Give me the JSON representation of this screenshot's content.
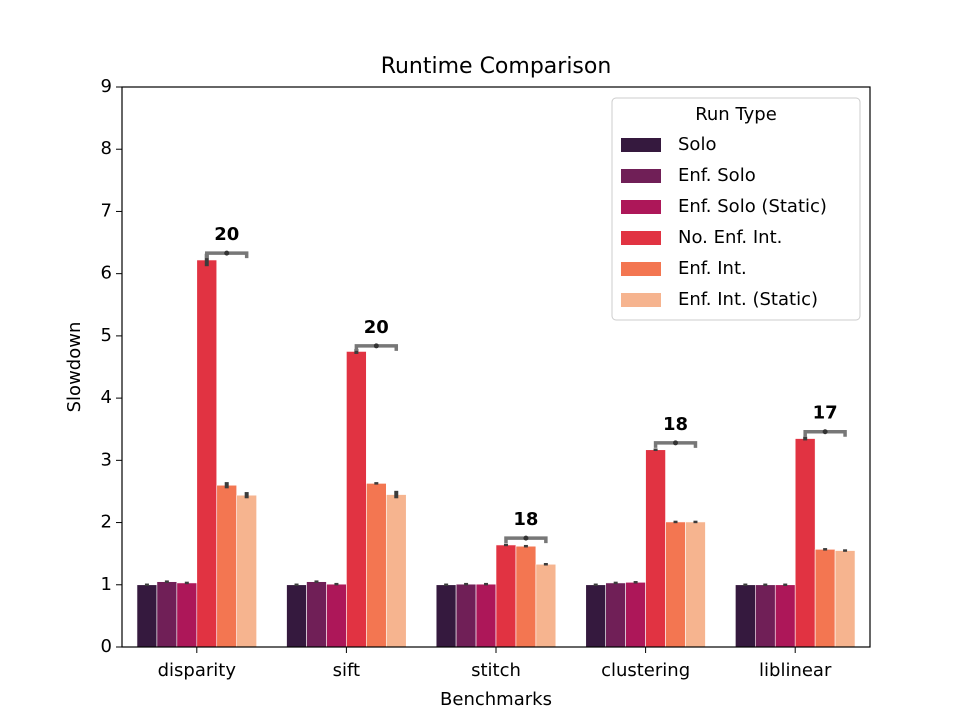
{
  "chart_data": {
    "type": "bar",
    "title": "Runtime Comparison",
    "x_label": "Benchmarks",
    "y_label": "Slowdown",
    "categories": [
      "disparity",
      "sift",
      "stitch",
      "clustering",
      "liblinear"
    ],
    "legend_title": "Run Type",
    "legend": "upper right",
    "series": [
      {
        "name": "Solo",
        "color": "#35193e",
        "values": [
          1.0,
          1.0,
          1.0,
          1.0,
          1.0
        ],
        "errors": [
          0.02,
          0.02,
          0.02,
          0.02,
          0.02
        ]
      },
      {
        "name": "Enf. Solo",
        "color": "#701f57",
        "values": [
          1.05,
          1.05,
          1.01,
          1.03,
          1.0
        ],
        "errors": [
          0.02,
          0.02,
          0.02,
          0.02,
          0.02
        ]
      },
      {
        "name": "Enf. Solo (Static)",
        "color": "#ad1759",
        "values": [
          1.03,
          1.01,
          1.01,
          1.04,
          1.0
        ],
        "errors": [
          0.02,
          0.02,
          0.02,
          0.02,
          0.02
        ]
      },
      {
        "name": "No. Enf. Int.",
        "color": "#e13342",
        "values": [
          6.22,
          4.75,
          1.64,
          3.17,
          3.35
        ],
        "errors": [
          0.1,
          0.04,
          0.02,
          0.02,
          0.03
        ]
      },
      {
        "name": "Enf. Int.",
        "color": "#f37651",
        "values": [
          2.6,
          2.63,
          1.62,
          2.01,
          1.57
        ],
        "errors": [
          0.05,
          0.02,
          0.02,
          0.02,
          0.02
        ]
      },
      {
        "name": "Enf. Int. (Static)",
        "color": "#f6b48f",
        "values": [
          2.44,
          2.45,
          1.33,
          2.01,
          1.55
        ],
        "errors": [
          0.05,
          0.06,
          0.02,
          0.02,
          0.02
        ]
      }
    ],
    "annotations": [
      {
        "label": "20",
        "y": 6.33
      },
      {
        "label": "20",
        "y": 4.84
      },
      {
        "label": "18",
        "y": 1.75
      },
      {
        "label": "18",
        "y": 3.28
      },
      {
        "label": "17",
        "y": 3.46
      }
    ],
    "ylim": [
      0,
      9
    ],
    "yticks": [
      0,
      1,
      2,
      3,
      4,
      5,
      6,
      7,
      8,
      9
    ]
  }
}
